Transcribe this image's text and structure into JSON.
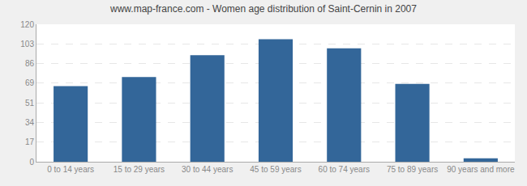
{
  "chart_data": {
    "type": "bar",
    "title": "www.map-france.com - Women age distribution of Saint-Cernin in 2007",
    "categories": [
      "0 to 14 years",
      "15 to 29 years",
      "30 to 44 years",
      "45 to 59 years",
      "60 to 74 years",
      "75 to 89 years",
      "90 years and more"
    ],
    "values": [
      66,
      74,
      93,
      107,
      99,
      68,
      3
    ],
    "color": "#336699",
    "ylim": [
      0,
      120
    ],
    "yticks": [
      0,
      17,
      34,
      51,
      69,
      86,
      103,
      120
    ],
    "grid": true
  }
}
